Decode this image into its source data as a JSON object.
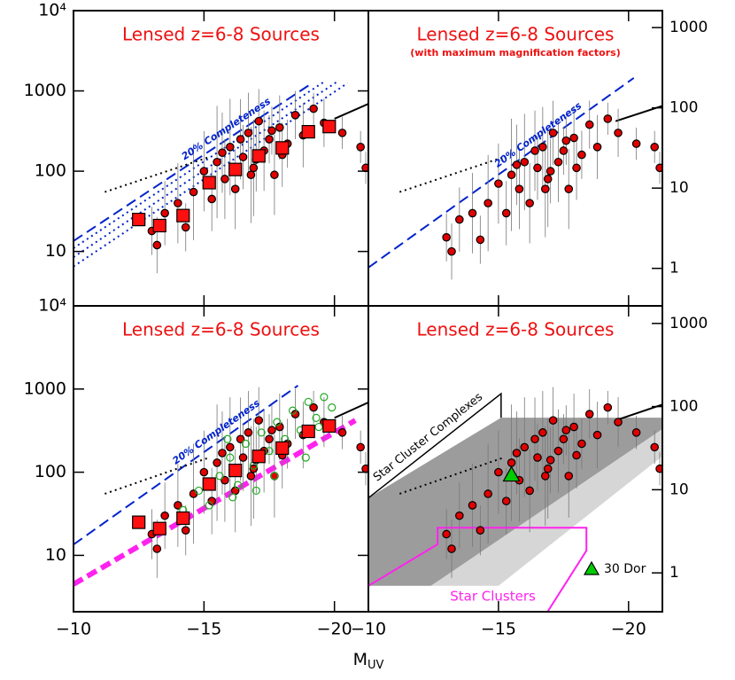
{
  "figure": {
    "xlabel": "M",
    "xlabel_sub": "UV"
  },
  "chart_data": [
    {
      "type": "scatter",
      "title": "Lensed z=6-8 Sources",
      "xlim": [
        -10,
        -21.3
      ],
      "xticks": [
        {
          "value": -10,
          "label": "−10"
        },
        {
          "value": -15,
          "label": "−15"
        },
        {
          "value": -20,
          "label": "−20"
        }
      ],
      "xtick_labels": false,
      "ylim": [
        2.1,
        10000
      ],
      "log_y": true,
      "yticks": [
        10,
        100,
        1000,
        {
          "value": 10000,
          "label": "10⁴"
        }
      ],
      "series": [
        {
          "color": "#e00000",
          "marker": "circle",
          "x": [
            -13.2,
            -13.0,
            -13.5,
            -14.0,
            -14.3,
            -14.6,
            -15.0,
            -15.3,
            -15.5,
            -15.8,
            -16.0,
            -16.2,
            -16.5,
            -16.7,
            -16.9,
            -17.1,
            -17.3,
            -17.5,
            -17.7,
            -17.9,
            -18.2,
            -18.5,
            -18.8,
            -19.2,
            -19.6,
            -20.3,
            -21.0,
            -21.2,
            -16.4,
            -17.0,
            -18.0,
            -17.6,
            -15.7,
            -16.8
          ],
          "values": [
            12,
            18,
            30,
            40,
            20,
            55,
            100,
            45,
            130,
            80,
            200,
            60,
            150,
            300,
            110,
            420,
            180,
            250,
            90,
            350,
            220,
            500,
            280,
            600,
            400,
            300,
            200,
            110,
            250,
            140,
            160,
            320,
            170,
            90
          ],
          "yerr_dex": [
            0.35,
            0.3,
            0.4,
            0.5,
            0.3,
            0.6,
            0.5,
            0.4,
            0.7,
            0.5,
            0.6,
            0.5,
            0.4,
            0.5,
            0.6,
            0.4,
            0.5,
            0.3,
            0.5,
            0.4,
            0.3,
            0.3,
            0.4,
            0.2,
            0.3,
            0.2,
            0.2,
            0.2,
            0.5,
            0.4,
            0.4,
            0.3,
            0.5,
            0.6
          ]
        },
        {
          "color": "#ff1010",
          "marker": "square",
          "x": [
            -12.5,
            -13.3,
            -14.2,
            -15.2,
            -16.2,
            -17.1,
            -18.0,
            -19.0,
            -19.8
          ],
          "values": [
            25,
            21,
            28,
            72,
            105,
            155,
            195,
            310,
            360
          ]
        }
      ],
      "lines": [
        {
          "color": "#0022cc",
          "dash": "dashed",
          "width": 2,
          "x": [
            -10,
            -19.16
          ],
          "values": [
            13.5,
            1260
          ],
          "label": "20% Completeness"
        },
        {
          "color": "#0022cc",
          "dash": "dotted",
          "width": 2,
          "x": [
            -10,
            -19.6
          ],
          "values": [
            11,
            1300
          ]
        },
        {
          "color": "#0022cc",
          "dash": "dotted",
          "width": 2,
          "x": [
            -10,
            -20.1
          ],
          "values": [
            8.5,
            1300
          ]
        },
        {
          "color": "#0022cc",
          "dash": "dotted",
          "width": 2,
          "x": [
            -10,
            -20.5
          ],
          "values": [
            6.5,
            1250
          ]
        },
        {
          "color": "#000000",
          "dash": "dotted",
          "width": 2,
          "x": [
            -11.2,
            -15.2
          ],
          "values": [
            55,
            150
          ]
        },
        {
          "color": "#000000",
          "dash": "solid",
          "width": 2,
          "x": [
            -20,
            -21.3
          ],
          "values": [
            450,
            690
          ]
        }
      ]
    },
    {
      "type": "scatter",
      "title": "Lensed z=6-8 Sources",
      "subtitle": "(with maximum magnification factors)",
      "xlim": [
        -10,
        -21.3
      ],
      "xticks": [
        {
          "value": -10,
          "label": "−10"
        },
        {
          "value": -15,
          "label": "−15"
        },
        {
          "value": -20,
          "label": "−20"
        }
      ],
      "xtick_labels": false,
      "ylim": [
        2.1,
        10000
      ],
      "log_y": true,
      "y2lim": [
        0.341,
        1626
      ],
      "y2ticks": [
        1,
        10,
        100,
        1000
      ],
      "series": [
        {
          "color": "#e00000",
          "marker": "circle",
          "x": [
            -13.2,
            -13.0,
            -13.5,
            -14.0,
            -14.3,
            -14.6,
            -15.0,
            -15.3,
            -15.5,
            -15.8,
            -16.0,
            -16.2,
            -16.5,
            -16.7,
            -16.9,
            -17.1,
            -17.3,
            -17.5,
            -17.7,
            -17.9,
            -18.2,
            -18.5,
            -18.8,
            -19.2,
            -19.6,
            -20.3,
            -21.0,
            -21.2,
            -16.4,
            -17.0,
            -18.0,
            -17.6,
            -15.7,
            -16.8
          ],
          "values": [
            10,
            15,
            25,
            30,
            14,
            40,
            70,
            30,
            90,
            60,
            130,
            40,
            110,
            200,
            80,
            300,
            130,
            180,
            60,
            260,
            160,
            380,
            200,
            450,
            300,
            220,
            200,
            110,
            180,
            100,
            110,
            240,
            120,
            60
          ],
          "yerr_dex": [
            0.35,
            0.3,
            0.4,
            0.5,
            0.3,
            0.6,
            0.5,
            0.4,
            0.7,
            0.5,
            0.6,
            0.5,
            0.4,
            0.5,
            0.6,
            0.4,
            0.5,
            0.3,
            0.5,
            0.4,
            0.3,
            0.3,
            0.4,
            0.2,
            0.3,
            0.2,
            0.2,
            0.2,
            0.5,
            0.4,
            0.4,
            0.3,
            0.5,
            0.6
          ]
        }
      ],
      "lines": [
        {
          "color": "#0022cc",
          "dash": "dashed",
          "width": 2,
          "x": [
            -10,
            -20.2
          ],
          "values": [
            6.3,
            1450
          ],
          "label": "20% Completeness"
        },
        {
          "color": "#000000",
          "dash": "dotted",
          "width": 2,
          "x": [
            -11.2,
            -15.2
          ],
          "values": [
            55,
            150
          ]
        },
        {
          "color": "#000000",
          "dash": "solid",
          "width": 2,
          "x": [
            -19.5,
            -21.3
          ],
          "values": [
            420,
            650
          ]
        }
      ]
    },
    {
      "type": "scatter",
      "title": "Lensed z=6-8 Sources",
      "xlim": [
        -10,
        -21.3
      ],
      "xticks": [
        {
          "value": -10,
          "label": "−10"
        },
        {
          "value": -15,
          "label": "−15"
        },
        {
          "value": -20,
          "label": "−20"
        }
      ],
      "xtick_labels": true,
      "ylim": [
        2.1,
        10000
      ],
      "log_y": true,
      "yticks": [
        10,
        100,
        1000,
        {
          "value": 10000,
          "label": "10⁴"
        }
      ],
      "series": [
        {
          "color": "#e00000",
          "marker": "circle",
          "x": [
            -13.2,
            -13.0,
            -13.5,
            -14.0,
            -14.3,
            -14.6,
            -15.0,
            -15.3,
            -15.5,
            -15.8,
            -16.0,
            -16.2,
            -16.5,
            -16.7,
            -16.9,
            -17.1,
            -17.3,
            -17.5,
            -17.7,
            -17.9,
            -18.2,
            -18.5,
            -18.8,
            -19.2,
            -19.6,
            -20.3,
            -21.0,
            -21.2,
            -16.4,
            -17.0,
            -18.0,
            -17.6,
            -15.7,
            -16.8
          ],
          "values": [
            12,
            18,
            30,
            40,
            20,
            55,
            100,
            45,
            130,
            80,
            200,
            60,
            150,
            300,
            110,
            420,
            180,
            250,
            90,
            350,
            220,
            500,
            280,
            600,
            400,
            300,
            200,
            110,
            250,
            140,
            160,
            320,
            170,
            90
          ],
          "yerr_dex": [
            0.35,
            0.3,
            0.4,
            0.5,
            0.3,
            0.6,
            0.5,
            0.4,
            0.7,
            0.5,
            0.6,
            0.5,
            0.4,
            0.5,
            0.6,
            0.4,
            0.5,
            0.3,
            0.5,
            0.4,
            0.3,
            0.3,
            0.4,
            0.2,
            0.3,
            0.2,
            0.2,
            0.2,
            0.5,
            0.4,
            0.4,
            0.3,
            0.5,
            0.6
          ]
        },
        {
          "color": "#22aa22",
          "marker": "circle",
          "open": true,
          "x": [
            -14.2,
            -14.8,
            -15.2,
            -15.6,
            -16.0,
            -16.3,
            -16.6,
            -16.9,
            -17.2,
            -17.5,
            -17.8,
            -18.1,
            -18.4,
            -18.7,
            -19.0,
            -19.3,
            -19.6,
            -19.9,
            -17.0,
            -16.1,
            -18.9,
            -17.7,
            -15.9,
            -19.4
          ],
          "values": [
            35,
            60,
            40,
            90,
            150,
            70,
            220,
            120,
            300,
            180,
            400,
            250,
            550,
            320,
            700,
            450,
            800,
            600,
            60,
            50,
            150,
            90,
            250,
            350
          ]
        },
        {
          "color": "#ff1010",
          "marker": "square",
          "x": [
            -12.5,
            -13.3,
            -14.2,
            -15.2,
            -16.2,
            -17.1,
            -18.0,
            -19.0,
            -19.8
          ],
          "values": [
            25,
            21,
            28,
            72,
            105,
            155,
            195,
            310,
            360
          ]
        }
      ],
      "lines": [
        {
          "color": "#0022cc",
          "dash": "dashed",
          "width": 2,
          "x": [
            -10,
            -18.6
          ],
          "values": [
            13.5,
            1100
          ],
          "label": "20% Completeness"
        },
        {
          "color": "#000000",
          "dash": "dotted",
          "width": 2,
          "x": [
            -11.2,
            -15.2
          ],
          "values": [
            55,
            150
          ]
        },
        {
          "color": "#000000",
          "dash": "solid",
          "width": 2,
          "x": [
            -20,
            -21.3
          ],
          "values": [
            450,
            690
          ]
        },
        {
          "color": "#ff22ee",
          "dash": "dashed",
          "width": 6,
          "x": [
            -10,
            -20.8
          ],
          "values": [
            4.5,
            420
          ]
        }
      ]
    },
    {
      "type": "scatter",
      "title": "Lensed z=6-8 Sources",
      "xlim": [
        -10,
        -21.3
      ],
      "xticks": [
        {
          "value": -10,
          "label": "−10"
        },
        {
          "value": -15,
          "label": "−15"
        },
        {
          "value": -20,
          "label": "−20"
        }
      ],
      "xtick_labels": true,
      "ylim": [
        2.1,
        10000
      ],
      "log_y": true,
      "y2lim": [
        0.341,
        1626
      ],
      "y2ticks": [
        1,
        10,
        100,
        1000
      ],
      "legend": "lower right",
      "regions": [
        {
          "fill": "#d6d6d6",
          "x": [
            -12.4,
            -21.3,
            -21.3,
            -15
          ],
          "values": [
            4.3,
            430,
            156,
            4.3
          ]
        },
        {
          "fill": "#9c9c9c",
          "x": [
            -10,
            -15.1,
            -21.3,
            -21.3,
            -12.4,
            -10
          ],
          "values": [
            49,
            453,
            453,
            331,
            4.3,
            4.3
          ]
        },
        {
          "stroke": "#ff22ee",
          "label": "Star Clusters",
          "x": [
            -10,
            -12.66,
            -12.66,
            -18.38,
            -18.38,
            -16.62
          ],
          "values": [
            4.3,
            13.6,
            21.5,
            21.5,
            11.4,
            1.55
          ]
        }
      ],
      "series": [
        {
          "color": "#e00000",
          "marker": "circle",
          "x": [
            -13.2,
            -13.0,
            -13.5,
            -14.0,
            -14.3,
            -14.6,
            -15.0,
            -15.3,
            -15.5,
            -15.8,
            -16.0,
            -16.2,
            -16.5,
            -16.7,
            -16.9,
            -17.1,
            -17.3,
            -17.5,
            -17.7,
            -17.9,
            -18.2,
            -18.5,
            -18.8,
            -19.2,
            -19.6,
            -20.3,
            -21.0,
            -21.2,
            -16.4,
            -17.0,
            -18.0,
            -17.6,
            -15.7,
            -16.8
          ],
          "values": [
            12,
            18,
            30,
            40,
            20,
            55,
            100,
            45,
            130,
            80,
            200,
            60,
            150,
            300,
            110,
            420,
            180,
            250,
            90,
            350,
            220,
            500,
            280,
            600,
            400,
            300,
            200,
            110,
            250,
            140,
            160,
            320,
            170,
            90
          ],
          "yerr_dex": [
            0.35,
            0.3,
            0.4,
            0.5,
            0.3,
            0.6,
            0.5,
            0.4,
            0.7,
            0.5,
            0.6,
            0.5,
            0.4,
            0.5,
            0.6,
            0.4,
            0.5,
            0.3,
            0.5,
            0.4,
            0.3,
            0.3,
            0.4,
            0.2,
            0.3,
            0.2,
            0.2,
            0.2,
            0.5,
            0.4,
            0.4,
            0.3,
            0.5,
            0.6
          ]
        },
        {
          "name": "30 Dor",
          "color": "#00cc00",
          "marker": "triangle",
          "x": [
            -15.5
          ],
          "values": [
            93
          ]
        }
      ],
      "lines": [
        {
          "color": "#000000",
          "dash": "solid",
          "width": 1.5,
          "x": [
            -10,
            -15.1,
            -15.1
          ],
          "values": [
            49,
            880,
            453
          ],
          "label": "Star Cluster Complexes"
        },
        {
          "color": "#000000",
          "dash": "dotted",
          "width": 2,
          "x": [
            -11.2,
            -15.2
          ],
          "values": [
            55,
            150
          ]
        },
        {
          "color": "#000000",
          "dash": "solid",
          "width": 2,
          "x": [
            -19.5,
            -21.3
          ],
          "values": [
            420,
            650
          ]
        }
      ]
    }
  ]
}
